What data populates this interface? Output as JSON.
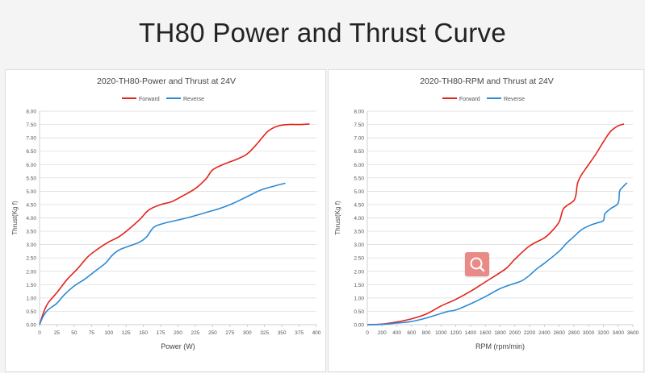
{
  "page": {
    "title": "TH80 Power and Thrust Curve"
  },
  "colors": {
    "forward": "#e2231a",
    "reverse": "#2b8ad6",
    "grid": "#d9d9d9",
    "axis": "#bfbfbf"
  },
  "icons": {
    "zoom": "zoom-in-icon"
  },
  "chart_data": [
    {
      "type": "line",
      "title": "2020-TH80-Power and Thrust at 24V",
      "xlabel": "Power (W)",
      "ylabel": "Thrust(Kg f)",
      "xlim": [
        0,
        400
      ],
      "ylim": [
        0,
        8
      ],
      "x_ticks": [
        "0",
        "25",
        "50",
        "75",
        "100",
        "125",
        "150",
        "175",
        "200",
        "225",
        "250",
        "275",
        "300",
        "325",
        "350",
        "375",
        "400"
      ],
      "y_ticks": [
        "0.00",
        "0.50",
        "1.00",
        "1.50",
        "2.00",
        "2.50",
        "3.00",
        "3.50",
        "4.00",
        "4.50",
        "5.00",
        "5.50",
        "6.00",
        "6.50",
        "7.00",
        "7.50",
        "8.00"
      ],
      "legend": "top-center",
      "grid": "horizontal",
      "series": [
        {
          "name": "Forward",
          "color": "#e2231a",
          "points": [
            [
              0,
              0
            ],
            [
              5,
              0.4
            ],
            [
              12,
              0.8
            ],
            [
              25,
              1.2
            ],
            [
              40,
              1.7
            ],
            [
              55,
              2.1
            ],
            [
              70,
              2.55
            ],
            [
              85,
              2.85
            ],
            [
              100,
              3.1
            ],
            [
              115,
              3.3
            ],
            [
              130,
              3.6
            ],
            [
              145,
              3.95
            ],
            [
              158,
              4.3
            ],
            [
              175,
              4.5
            ],
            [
              190,
              4.6
            ],
            [
              205,
              4.8
            ],
            [
              225,
              5.1
            ],
            [
              240,
              5.45
            ],
            [
              250,
              5.8
            ],
            [
              265,
              6.0
            ],
            [
              285,
              6.2
            ],
            [
              300,
              6.4
            ],
            [
              315,
              6.8
            ],
            [
              330,
              7.25
            ],
            [
              345,
              7.45
            ],
            [
              360,
              7.5
            ],
            [
              375,
              7.5
            ],
            [
              390,
              7.52
            ]
          ]
        },
        {
          "name": "Reverse",
          "color": "#2b8ad6",
          "points": [
            [
              0,
              0
            ],
            [
              5,
              0.3
            ],
            [
              12,
              0.55
            ],
            [
              25,
              0.8
            ],
            [
              35,
              1.1
            ],
            [
              50,
              1.45
            ],
            [
              65,
              1.7
            ],
            [
              80,
              2.0
            ],
            [
              95,
              2.3
            ],
            [
              105,
              2.6
            ],
            [
              115,
              2.8
            ],
            [
              130,
              2.95
            ],
            [
              145,
              3.1
            ],
            [
              155,
              3.3
            ],
            [
              165,
              3.65
            ],
            [
              180,
              3.8
            ],
            [
              200,
              3.92
            ],
            [
              220,
              4.05
            ],
            [
              240,
              4.2
            ],
            [
              260,
              4.35
            ],
            [
              280,
              4.55
            ],
            [
              300,
              4.8
            ],
            [
              320,
              5.05
            ],
            [
              340,
              5.2
            ],
            [
              355,
              5.3
            ]
          ]
        }
      ]
    },
    {
      "type": "line",
      "title": "2020-TH80-RPM and Thrust at 24V",
      "xlabel": "RPM (rpm/min)",
      "ylabel": "Thrust(Kg f)",
      "xlim": [
        0,
        3600
      ],
      "ylim": [
        0,
        8
      ],
      "x_ticks": [
        "0",
        "200",
        "400",
        "600",
        "800",
        "1000",
        "1200",
        "1400",
        "1600",
        "1800",
        "2000",
        "2200",
        "2400",
        "2600",
        "2800",
        "3000",
        "3200",
        "3400",
        "3600"
      ],
      "y_ticks": [
        "0.00",
        "0.50",
        "1.00",
        "1.50",
        "2.00",
        "2.50",
        "3.00",
        "3.50",
        "4.00",
        "4.50",
        "5.00",
        "5.50",
        "6.00",
        "6.50",
        "7.00",
        "7.50",
        "8.00"
      ],
      "legend": "top-center",
      "grid": "horizontal",
      "series": [
        {
          "name": "Forward",
          "color": "#e2231a",
          "points": [
            [
              0,
              0
            ],
            [
              200,
              0.02
            ],
            [
              400,
              0.1
            ],
            [
              600,
              0.22
            ],
            [
              800,
              0.4
            ],
            [
              1000,
              0.7
            ],
            [
              1200,
              0.95
            ],
            [
              1400,
              1.25
            ],
            [
              1600,
              1.6
            ],
            [
              1800,
              1.95
            ],
            [
              1900,
              2.15
            ],
            [
              2000,
              2.45
            ],
            [
              2200,
              2.95
            ],
            [
              2400,
              3.25
            ],
            [
              2500,
              3.5
            ],
            [
              2600,
              3.85
            ],
            [
              2650,
              4.3
            ],
            [
              2700,
              4.45
            ],
            [
              2800,
              4.65
            ],
            [
              2830,
              4.9
            ],
            [
              2850,
              5.3
            ],
            [
              2900,
              5.6
            ],
            [
              3000,
              6.0
            ],
            [
              3100,
              6.4
            ],
            [
              3200,
              6.85
            ],
            [
              3300,
              7.25
            ],
            [
              3400,
              7.45
            ],
            [
              3480,
              7.52
            ]
          ]
        },
        {
          "name": "Reverse",
          "color": "#2b8ad6",
          "points": [
            [
              0,
              0
            ],
            [
              200,
              0.01
            ],
            [
              400,
              0.06
            ],
            [
              600,
              0.12
            ],
            [
              800,
              0.25
            ],
            [
              1000,
              0.42
            ],
            [
              1100,
              0.5
            ],
            [
              1200,
              0.55
            ],
            [
              1400,
              0.78
            ],
            [
              1600,
              1.05
            ],
            [
              1800,
              1.35
            ],
            [
              2000,
              1.55
            ],
            [
              2100,
              1.65
            ],
            [
              2200,
              1.85
            ],
            [
              2300,
              2.1
            ],
            [
              2400,
              2.3
            ],
            [
              2600,
              2.75
            ],
            [
              2700,
              3.05
            ],
            [
              2800,
              3.3
            ],
            [
              2900,
              3.55
            ],
            [
              3000,
              3.7
            ],
            [
              3100,
              3.8
            ],
            [
              3200,
              3.9
            ],
            [
              3220,
              4.15
            ],
            [
              3300,
              4.35
            ],
            [
              3400,
              4.55
            ],
            [
              3420,
              5.0
            ],
            [
              3460,
              5.15
            ],
            [
              3520,
              5.32
            ]
          ]
        }
      ]
    }
  ]
}
